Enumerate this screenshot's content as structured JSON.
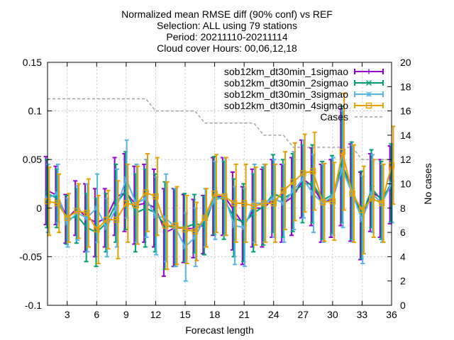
{
  "chart_data": {
    "type": "line",
    "title_lines": [
      "Normalized mean RMSE diff (90% conf) vs REF",
      "Selection: ALL using     79 stations",
      "Period: 20211110-20211114",
      "Cloud cover   Hours: 00,06,12,18"
    ],
    "xlabel": "Forecast length",
    "ylabel": "",
    "y2label": "No cases",
    "xlim": [
      1,
      36
    ],
    "ylim": [
      -0.1,
      0.15
    ],
    "y2lim": [
      0,
      20
    ],
    "xticks": [
      3,
      6,
      9,
      12,
      15,
      18,
      21,
      24,
      27,
      30,
      33,
      36
    ],
    "yticks": [
      -0.1,
      -0.05,
      0,
      0.05,
      0.1,
      0.15
    ],
    "ytick_labels": [
      "-0.1",
      "-0.05",
      "0",
      "0.05",
      "0.1",
      "0.15"
    ],
    "y2ticks": [
      0,
      2,
      4,
      6,
      8,
      10,
      12,
      14,
      16,
      18,
      20
    ],
    "grid": true,
    "legend_position": "top-right",
    "x": [
      1,
      2,
      3,
      4,
      5,
      6,
      7,
      8,
      9,
      10,
      11,
      12,
      13,
      14,
      15,
      16,
      17,
      18,
      19,
      20,
      21,
      22,
      23,
      24,
      25,
      26,
      27,
      28,
      29,
      30,
      31,
      32,
      33,
      34,
      35,
      36
    ],
    "series": [
      {
        "name": "sob12km_dt30min_1sigmao",
        "color": "#9400d3",
        "marker": "plus",
        "values": [
          0.018,
          0.013,
          -0.011,
          0.0,
          -0.01,
          -0.015,
          -0.01,
          0.012,
          0.016,
          0.003,
          0.005,
          0.0,
          -0.025,
          -0.02,
          -0.021,
          -0.021,
          -0.017,
          0.012,
          0.012,
          -0.003,
          -0.018,
          0.0,
          0.0,
          0.01,
          0.005,
          0.012,
          0.03,
          0.022,
          0.005,
          0.01,
          0.042,
          0.016,
          -0.008,
          0.016,
          0.01,
          0.024
        ],
        "err": [
          0.035,
          0.03,
          0.025,
          0.028,
          0.035,
          0.035,
          0.03,
          0.04,
          0.04,
          0.04,
          0.04,
          0.04,
          0.045,
          0.04,
          0.035,
          0.03,
          0.03,
          0.04,
          0.04,
          0.04,
          0.04,
          0.04,
          0.04,
          0.04,
          0.04,
          0.04,
          0.04,
          0.04,
          0.04,
          0.04,
          0.06,
          0.05,
          0.045,
          0.04,
          0.04,
          0.04
        ]
      },
      {
        "name": "sob12km_dt30min_2sigmao",
        "color": "#009e73",
        "marker": "x",
        "values": [
          0.015,
          0.01,
          -0.012,
          -0.008,
          -0.02,
          -0.025,
          -0.015,
          0.005,
          0.018,
          -0.005,
          0.0,
          -0.005,
          -0.018,
          -0.02,
          -0.02,
          -0.016,
          -0.018,
          0.013,
          0.008,
          -0.01,
          -0.015,
          -0.005,
          0.002,
          0.015,
          0.01,
          0.016,
          0.025,
          0.025,
          0.008,
          0.014,
          0.045,
          0.018,
          -0.007,
          0.02,
          0.008,
          0.026
        ],
        "err": [
          0.035,
          0.03,
          0.025,
          0.028,
          0.035,
          0.035,
          0.03,
          0.04,
          0.04,
          0.04,
          0.04,
          0.04,
          0.045,
          0.04,
          0.035,
          0.03,
          0.03,
          0.04,
          0.04,
          0.04,
          0.04,
          0.04,
          0.04,
          0.04,
          0.04,
          0.04,
          0.04,
          0.04,
          0.04,
          0.04,
          0.06,
          0.05,
          0.045,
          0.04,
          0.04,
          0.04
        ]
      },
      {
        "name": "sob12km_dt30min_3sigmao",
        "color": "#56b4e9",
        "marker": "star",
        "values": [
          0.01,
          0.015,
          -0.015,
          -0.005,
          -0.01,
          0.0,
          -0.02,
          0.0,
          0.03,
          0.005,
          0.01,
          -0.008,
          -0.01,
          -0.02,
          -0.04,
          -0.03,
          -0.01,
          0.008,
          0.012,
          -0.018,
          -0.02,
          0.005,
          0.005,
          0.01,
          0.005,
          0.018,
          0.03,
          0.015,
          0.005,
          0.012,
          0.04,
          0.015,
          -0.012,
          0.015,
          0.005,
          0.025
        ],
        "err": [
          0.035,
          0.03,
          0.025,
          0.028,
          0.035,
          0.035,
          0.03,
          0.04,
          0.04,
          0.04,
          0.04,
          0.04,
          0.045,
          0.04,
          0.035,
          0.03,
          0.03,
          0.04,
          0.04,
          0.04,
          0.04,
          0.04,
          0.04,
          0.04,
          0.04,
          0.04,
          0.04,
          0.04,
          0.04,
          0.04,
          0.06,
          0.05,
          0.045,
          0.04,
          0.04,
          0.04
        ]
      },
      {
        "name": "sob12km_dt30min_4sigmao",
        "color": "#e69f00",
        "marker": "box",
        "values": [
          0.007,
          0.005,
          -0.01,
          -0.003,
          -0.005,
          -0.022,
          -0.012,
          -0.012,
          0.005,
          0.003,
          0.016,
          0.012,
          -0.018,
          -0.018,
          -0.022,
          -0.024,
          -0.01,
          0.015,
          0.012,
          0.005,
          0.005,
          0.002,
          0.005,
          0.005,
          0.018,
          0.027,
          0.036,
          0.038,
          0.006,
          0.007,
          0.058,
          0.015,
          -0.002,
          0.01,
          0.005,
          0.044
        ],
        "err": [
          0.035,
          0.03,
          0.025,
          0.028,
          0.035,
          0.035,
          0.03,
          0.04,
          0.04,
          0.04,
          0.04,
          0.04,
          0.045,
          0.04,
          0.035,
          0.03,
          0.03,
          0.04,
          0.04,
          0.04,
          0.04,
          0.04,
          0.04,
          0.04,
          0.04,
          0.04,
          0.04,
          0.04,
          0.04,
          0.04,
          0.06,
          0.05,
          0.045,
          0.04,
          0.04,
          0.04
        ]
      }
    ],
    "cases": {
      "name": "Cases",
      "color": "#a0a0a0",
      "axis": "y2",
      "values": [
        17,
        17,
        17,
        17,
        17,
        17,
        17,
        17,
        17,
        17,
        17,
        16,
        16,
        16,
        16,
        16,
        15,
        15,
        15,
        15,
        15,
        15,
        14,
        14,
        14,
        13,
        13,
        13,
        13,
        13,
        13,
        13,
        12,
        12,
        12,
        12
      ]
    }
  }
}
